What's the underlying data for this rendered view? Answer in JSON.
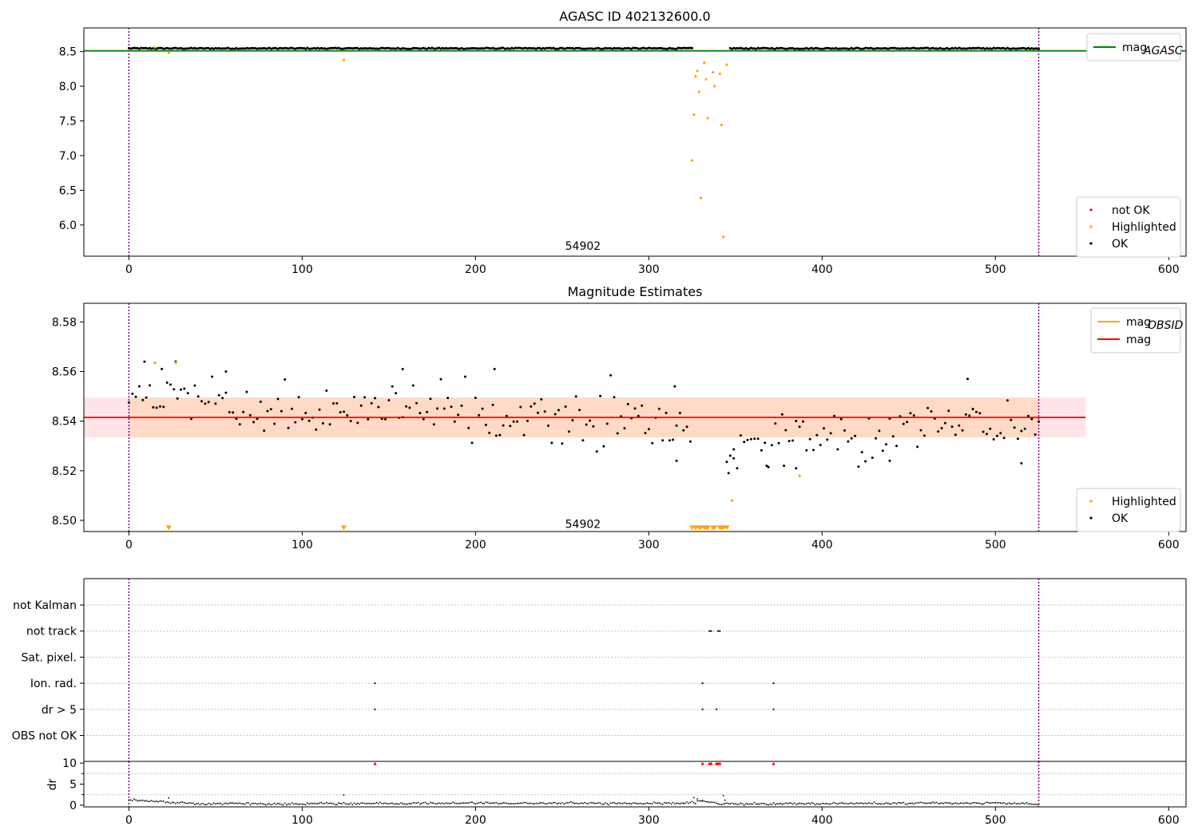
{
  "figure": {
    "background": "#ffffff",
    "colors": {
      "ok": "#000000",
      "highlighted": "#ffa500",
      "not_ok": "#ff0000",
      "mag_agasc": "#008000",
      "mag": "#ff0000",
      "mag_obsid": "#ffa500",
      "band_inner": "#ffdac6",
      "band_outer": "#ffe4e8",
      "vline": "#800080"
    }
  },
  "chart_data": [
    {
      "id": "top",
      "type": "scatter",
      "title": "AGASC ID 402132600.0",
      "xlim": [
        -26,
        610
      ],
      "ylim": [
        5.55,
        8.84
      ],
      "xticks": [
        0,
        100,
        200,
        300,
        400,
        500,
        600
      ],
      "yticks": [
        6.0,
        6.5,
        7.0,
        7.5,
        8.0,
        8.5
      ],
      "ytick_labels": [
        "6.0",
        "6.5",
        "7.0",
        "7.5",
        "8.0",
        "8.5"
      ],
      "vlines": [
        0,
        525
      ],
      "hline": {
        "name": "mag_AGASC",
        "y": 8.51,
        "x_range": [
          -26,
          610
        ]
      },
      "annotation": {
        "text": "54902",
        "x": 262,
        "y": 5.7
      },
      "legend_lines": [
        {
          "label": "mag",
          "sub": "AGASC",
          "color": "#008000"
        }
      ],
      "legend_points": [
        {
          "label": "not OK",
          "color": "#ff0000"
        },
        {
          "label": "Highlighted",
          "color": "#ffa500"
        },
        {
          "label": "OK",
          "color": "#000000"
        }
      ],
      "series": [
        {
          "name": "OK",
          "style": "band_points",
          "ranges": [
            [
              0,
              325
            ],
            [
              347,
              525
            ]
          ],
          "y": 8.545,
          "jitter": 0.008
        },
        {
          "name": "Highlighted",
          "points": [
            [
              15,
              8.56
            ],
            [
              23,
              8.48
            ],
            [
              124,
              8.38
            ],
            [
              325,
              6.93
            ],
            [
              326,
              7.59
            ],
            [
              327,
              8.14
            ],
            [
              328,
              8.22
            ],
            [
              329,
              7.92
            ],
            [
              330,
              6.39
            ],
            [
              332,
              8.34
            ],
            [
              333,
              8.1
            ],
            [
              334,
              7.54
            ],
            [
              337,
              8.2
            ],
            [
              338,
              8.0
            ],
            [
              341,
              8.18
            ],
            [
              342,
              7.44
            ],
            [
              343,
              5.83
            ],
            [
              345,
              8.31
            ]
          ]
        }
      ]
    },
    {
      "id": "middle",
      "type": "scatter",
      "title": "Magnitude Estimates",
      "xlim": [
        -26,
        610
      ],
      "ylim": [
        8.4955,
        8.5875
      ],
      "xticks": [
        0,
        100,
        200,
        300,
        400,
        500,
        600
      ],
      "yticks": [
        8.5,
        8.52,
        8.54,
        8.56,
        8.58
      ],
      "ytick_labels": [
        "8.50",
        "8.52",
        "8.54",
        "8.56",
        "8.58"
      ],
      "vlines": [
        0,
        525
      ],
      "bands": [
        {
          "y0": 8.5335,
          "y1": 8.5495,
          "x0": -26,
          "x1": 552,
          "color": "#ffe4e8"
        },
        {
          "y0": 8.5335,
          "y1": 8.5495,
          "x0": 0,
          "x1": 525,
          "color": "#ffdac6"
        }
      ],
      "hline": {
        "name": "mag",
        "y": 8.5415,
        "x_range": [
          -26,
          552
        ]
      },
      "annotation": {
        "text": "54902",
        "x": 262,
        "y": 8.4985
      },
      "legend_lines": [
        {
          "label": "mag",
          "sub": "OBSID",
          "color": "#ffa500"
        },
        {
          "label": "mag",
          "sub": "",
          "color": "#ff0000"
        }
      ],
      "legend_points": [
        {
          "label": "Highlighted",
          "color": "#ffa500"
        },
        {
          "label": "OK",
          "color": "#000000"
        }
      ],
      "series": [
        {
          "name": "OK",
          "style": "trend_points",
          "step": 2,
          "ranges": [
            [
              0,
              325
            ],
            [
              345,
              525
            ]
          ],
          "trend": [
            [
              0,
              8.552
            ],
            [
              30,
              8.551
            ],
            [
              60,
              8.545
            ],
            [
              100,
              8.542
            ],
            [
              140,
              8.545
            ],
            [
              160,
              8.545
            ],
            [
              200,
              8.543
            ],
            [
              250,
              8.541
            ],
            [
              300,
              8.539
            ],
            [
              320,
              8.538
            ],
            [
              345,
              8.522
            ],
            [
              360,
              8.532
            ],
            [
              380,
              8.534
            ],
            [
              400,
              8.532
            ],
            [
              430,
              8.534
            ],
            [
              460,
              8.541
            ],
            [
              500,
              8.538
            ],
            [
              525,
              8.54
            ]
          ],
          "noise": 0.0065,
          "extra_points": [
            [
              158,
              8.561
            ],
            [
              211,
              8.561
            ],
            [
              484,
              8.557
            ],
            [
              56,
              8.56
            ],
            [
              9,
              8.564
            ],
            [
              27,
              8.564
            ],
            [
              19,
              8.561
            ],
            [
              315,
              8.554
            ],
            [
              316,
              8.524
            ],
            [
              368,
              8.522
            ],
            [
              385,
              8.521
            ],
            [
              439,
              8.524
            ],
            [
              515,
              8.523
            ],
            [
              378,
              8.522
            ],
            [
              349,
              8.525
            ],
            [
              346,
              8.519
            ]
          ]
        },
        {
          "name": "Highlighted",
          "points": [
            [
              15,
              8.5635
            ],
            [
              27,
              8.5635
            ],
            [
              387,
              8.518
            ],
            [
              348,
              8.508
            ]
          ]
        },
        {
          "name": "Highlighted (below range)",
          "marker": "triangle_down",
          "y": 8.497,
          "x": [
            23,
            124,
            325,
            327,
            329,
            330,
            332,
            333,
            334,
            337,
            338,
            341,
            342,
            343,
            345
          ]
        }
      ]
    },
    {
      "id": "flags",
      "type": "scatter",
      "xlim": [
        -26,
        610
      ],
      "rows": [
        "not Kalman",
        "not track",
        "Sat. pixel.",
        "Ion. rad.",
        "dr > 5",
        "OBS not OK"
      ],
      "vlines": [
        0,
        525
      ],
      "series": [
        {
          "row": "not track",
          "x": [
            335,
            336,
            340,
            341
          ]
        },
        {
          "row": "Ion. rad.",
          "x": [
            142,
            331,
            372
          ]
        },
        {
          "row": "dr > 5",
          "x": [
            142,
            331,
            339,
            372
          ]
        }
      ]
    },
    {
      "id": "dr",
      "type": "scatter",
      "xlim": [
        -26,
        610
      ],
      "ylim": [
        -0.4,
        10.4
      ],
      "ylabel": "dr",
      "yticks": [
        0,
        5,
        10
      ],
      "ytick_labels": [
        "0",
        "5",
        "10"
      ],
      "xticks": [
        0,
        100,
        200,
        300,
        400,
        500,
        600
      ],
      "vlines": [
        0,
        525
      ],
      "series": [
        {
          "name": "dr",
          "style": "trend_points",
          "step": 1,
          "ranges": [
            [
              0,
              525
            ]
          ],
          "trend": [
            [
              0,
              1.1
            ],
            [
              10,
              1.0
            ],
            [
              20,
              0.8
            ],
            [
              40,
              0.35
            ],
            [
              100,
              0.3
            ],
            [
              200,
              0.5
            ],
            [
              300,
              0.4
            ],
            [
              325,
              0.5
            ],
            [
              330,
              1.1
            ],
            [
              340,
              0.3
            ],
            [
              400,
              0.4
            ],
            [
              500,
              0.5
            ],
            [
              525,
              0.2
            ]
          ],
          "noise": 0.12,
          "extra_points": [
            [
              23,
              1.7
            ],
            [
              124,
              2.4
            ],
            [
              326,
              1.8
            ],
            [
              328,
              1.5
            ],
            [
              331,
              1.0
            ],
            [
              343,
              2.3
            ],
            [
              344,
              1.2
            ],
            [
              320,
              0.4
            ]
          ]
        },
        {
          "name": "dr > 10",
          "marker": "triangle_up",
          "color": "#ff0000",
          "y": 9.9,
          "x": [
            142,
            331,
            335,
            336,
            339,
            340,
            341,
            372
          ]
        }
      ]
    }
  ]
}
